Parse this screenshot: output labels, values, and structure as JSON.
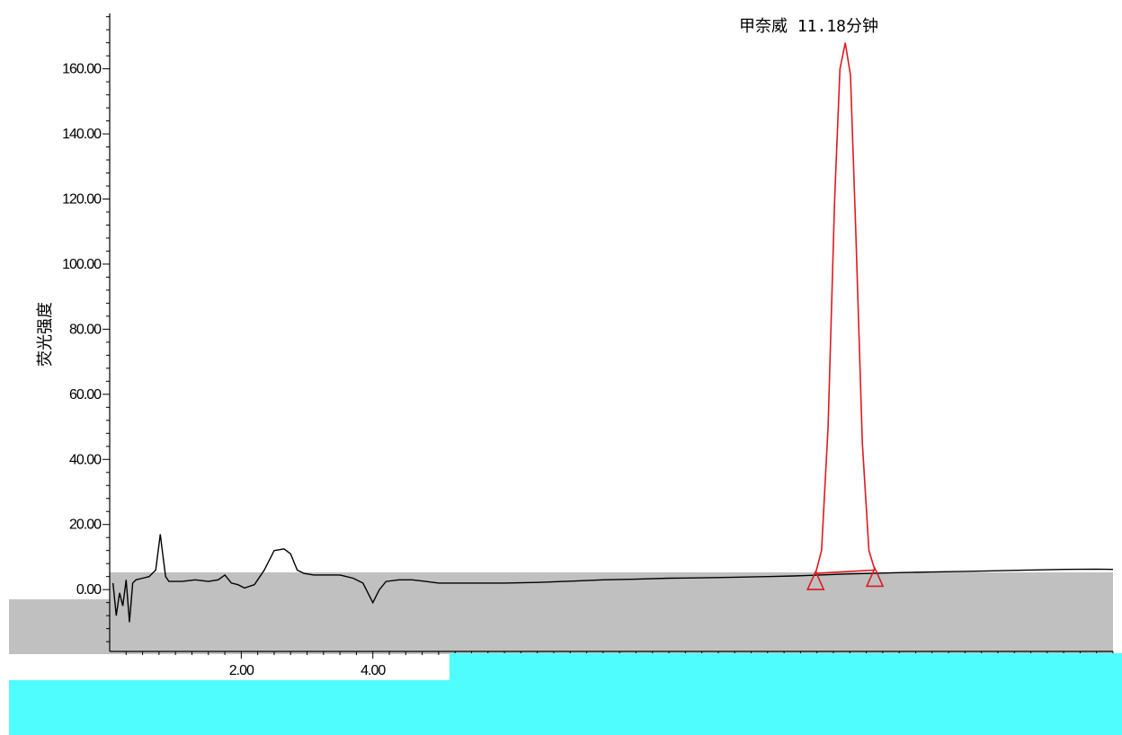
{
  "chart_data": {
    "type": "line",
    "title": "",
    "xlabel": "",
    "ylabel": "荧光强度",
    "ylim": [
      -19,
      177
    ],
    "xlim": [
      0.0,
      15.25
    ],
    "y_ticks": [
      "0.00",
      "20.00",
      "40.00",
      "60.00",
      "80.00",
      "100.00",
      "120.00",
      "140.00",
      "160.00"
    ],
    "x_ticks": [
      "2.00",
      "4.00"
    ],
    "peak_annotation": "甲奈威 11.18分钟",
    "colors": {
      "trace": "#000000",
      "peak": "#e0191f",
      "grey_band": "#c0c0c0",
      "cyan_band": "#4ffdfe"
    },
    "series": [
      {
        "values": [
          [
            0.05,
            2
          ],
          [
            0.1,
            -8
          ],
          [
            0.15,
            -1
          ],
          [
            0.2,
            -5
          ],
          [
            0.25,
            3
          ],
          [
            0.3,
            -10
          ],
          [
            0.35,
            2
          ],
          [
            0.4,
            3
          ],
          [
            0.5,
            3.5
          ],
          [
            0.6,
            4
          ],
          [
            0.7,
            6
          ],
          [
            0.77,
            17
          ],
          [
            0.8,
            12
          ],
          [
            0.85,
            4
          ],
          [
            0.9,
            2.5
          ],
          [
            1.1,
            2.5
          ],
          [
            1.3,
            3
          ],
          [
            1.5,
            2.5
          ],
          [
            1.65,
            3
          ],
          [
            1.75,
            4.5
          ],
          [
            1.85,
            2
          ],
          [
            1.95,
            1.5
          ],
          [
            2.05,
            0.5
          ],
          [
            2.2,
            1.5
          ],
          [
            2.35,
            6
          ],
          [
            2.5,
            12
          ],
          [
            2.65,
            12.5
          ],
          [
            2.75,
            11
          ],
          [
            2.85,
            6
          ],
          [
            2.95,
            5
          ],
          [
            3.1,
            4.5
          ],
          [
            3.3,
            4.5
          ],
          [
            3.5,
            4.5
          ],
          [
            3.7,
            3.5
          ],
          [
            3.85,
            2
          ],
          [
            4.0,
            -4
          ],
          [
            4.1,
            0
          ],
          [
            4.2,
            2.5
          ],
          [
            4.4,
            3
          ],
          [
            4.6,
            3
          ],
          [
            4.8,
            2.5
          ],
          [
            5.0,
            2
          ],
          [
            5.5,
            2
          ],
          [
            6.0,
            2
          ],
          [
            6.5,
            2.2
          ],
          [
            7.0,
            2.6
          ],
          [
            7.5,
            3
          ],
          [
            8.0,
            3.2
          ],
          [
            8.5,
            3.5
          ],
          [
            9.0,
            3.6
          ],
          [
            9.5,
            3.8
          ],
          [
            10.0,
            4
          ],
          [
            10.4,
            4.2
          ],
          [
            10.8,
            4.5
          ],
          [
            11.2,
            4.8
          ],
          [
            11.6,
            5
          ],
          [
            12.0,
            5.2
          ],
          [
            12.5,
            5.4
          ],
          [
            13.0,
            5.6
          ],
          [
            13.5,
            5.8
          ],
          [
            14.0,
            6
          ],
          [
            14.5,
            6.2
          ],
          [
            15.0,
            6.3
          ],
          [
            15.25,
            6.2
          ]
        ]
      },
      {
        "type": "peak",
        "values": [
          [
            10.73,
            5
          ],
          [
            10.82,
            12
          ],
          [
            10.92,
            50
          ],
          [
            11.02,
            120
          ],
          [
            11.1,
            160
          ],
          [
            11.18,
            168
          ],
          [
            11.26,
            158
          ],
          [
            11.34,
            110
          ],
          [
            11.44,
            45
          ],
          [
            11.54,
            12
          ],
          [
            11.63,
            6
          ]
        ]
      }
    ]
  }
}
